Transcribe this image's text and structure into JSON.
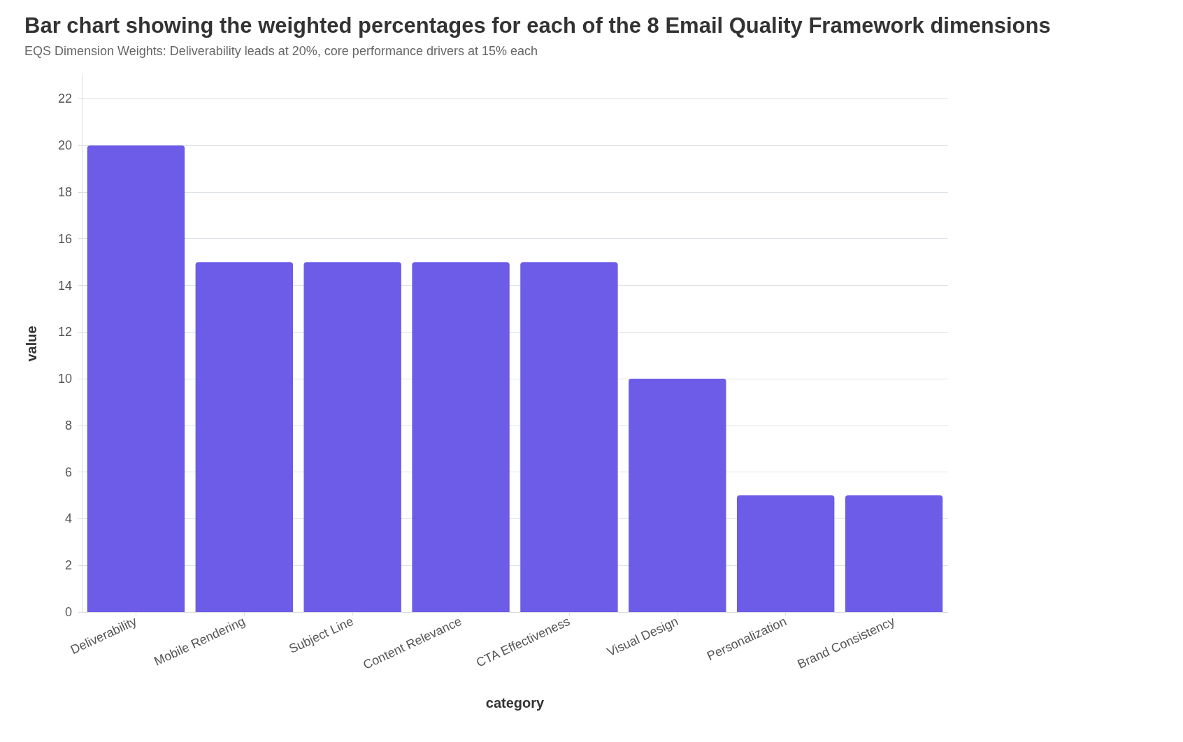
{
  "chart_data": {
    "type": "bar",
    "title": "Bar chart showing the weighted percentages for each of the 8 Email Quality Framework dimensions",
    "subtitle": "EQS Dimension Weights: Deliverability leads at 20%, core performance drivers at 15% each",
    "xlabel": "category",
    "ylabel": "value",
    "categories": [
      "Deliverability",
      "Mobile Rendering",
      "Subject Line",
      "Content Relevance",
      "CTA Effectiveness",
      "Visual Design",
      "Personalization",
      "Brand Consistency"
    ],
    "values": [
      20,
      15,
      15,
      15,
      15,
      10,
      5,
      5
    ],
    "color": "#6c5ce7",
    "ylim": [
      0,
      23
    ],
    "yticks": [
      0,
      2,
      4,
      6,
      8,
      10,
      12,
      14,
      16,
      18,
      20,
      22
    ],
    "grid": "y"
  }
}
